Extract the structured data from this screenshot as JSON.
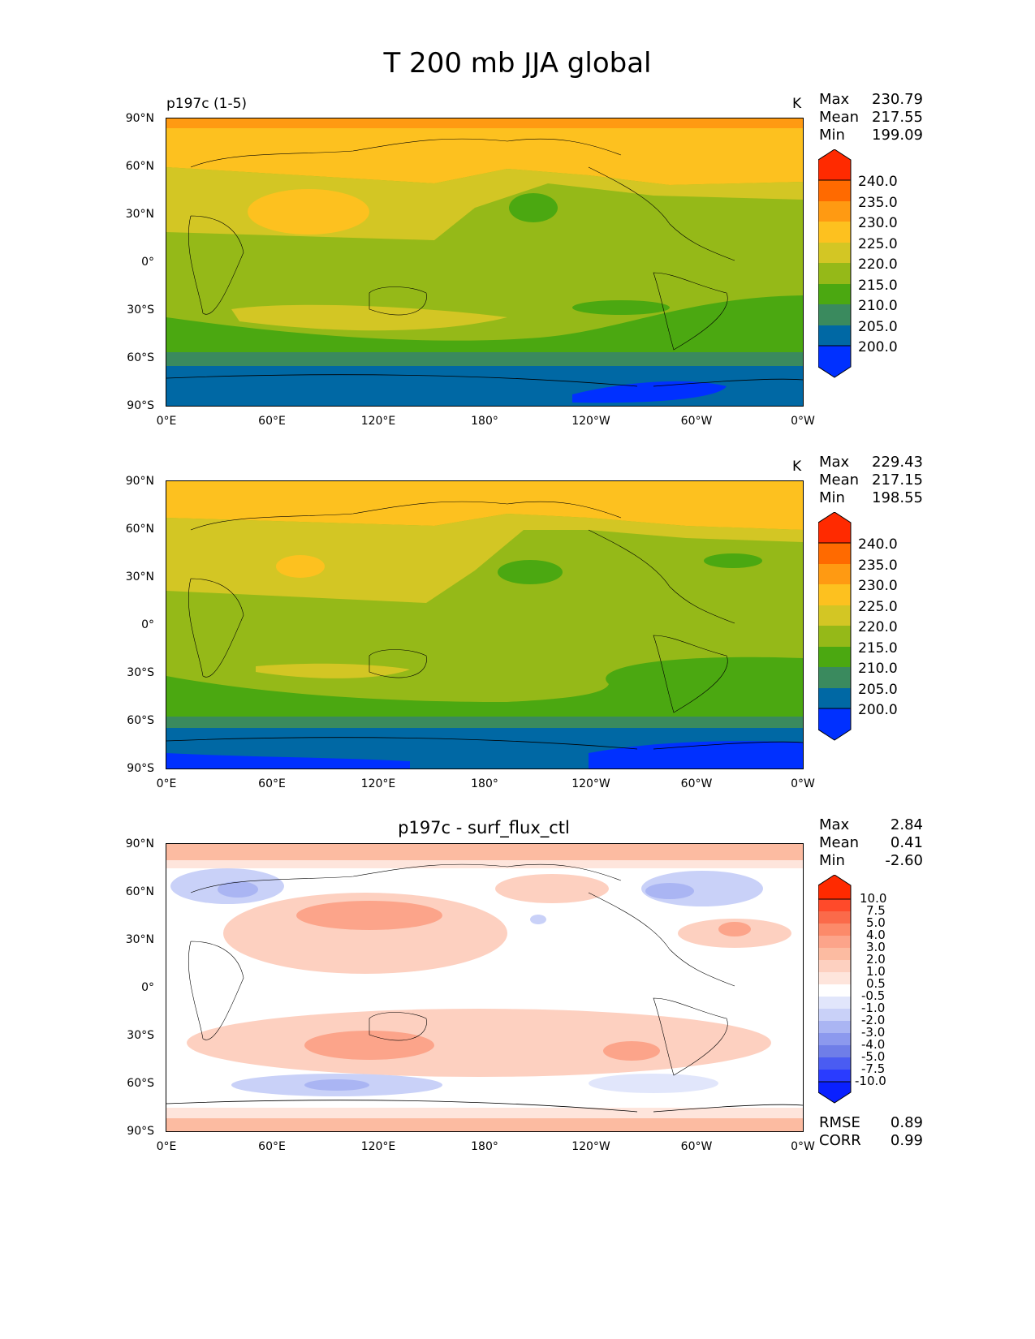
{
  "title": "T 200 mb JJA global",
  "axes": {
    "lon_ticks": [
      "0°E",
      "60°E",
      "120°E",
      "180°",
      "120°W",
      "60°W",
      "0°W"
    ],
    "lat_ticks": [
      "90°N",
      "60°N",
      "30°N",
      "0°",
      "30°S",
      "60°S",
      "90°S"
    ]
  },
  "panels": [
    {
      "left_label": "p197c (1-5)",
      "units": "K",
      "stats": [
        {
          "label": "Max",
          "value": "230.79"
        },
        {
          "label": "Mean",
          "value": "217.55"
        },
        {
          "label": "Min",
          "value": "199.09"
        }
      ]
    },
    {
      "left_label": "",
      "units": "K",
      "stats": [
        {
          "label": "Max",
          "value": "229.43"
        },
        {
          "label": "Mean",
          "value": "217.15"
        },
        {
          "label": "Min",
          "value": "198.55"
        }
      ]
    },
    {
      "center_title": "p197c - surf_flux_ctl",
      "stats": [
        {
          "label": "Max",
          "value": "2.84"
        },
        {
          "label": "Mean",
          "value": "0.41"
        },
        {
          "label": "Min",
          "value": "-2.60"
        }
      ],
      "metrics": [
        {
          "label": "RMSE",
          "value": "0.89"
        },
        {
          "label": "CORR",
          "value": "0.99"
        }
      ]
    }
  ],
  "colorbar_abs": {
    "levels": [
      "240.0",
      "235.0",
      "230.0",
      "225.0",
      "220.0",
      "215.0",
      "210.0",
      "205.0",
      "200.0"
    ],
    "colors": [
      "#ff2a00",
      "#ff6a00",
      "#ff9a12",
      "#fdc11f",
      "#d3c624",
      "#95b918",
      "#4ba811",
      "#3a8a5e",
      "#0068a4",
      "#0030ff"
    ]
  },
  "colorbar_diff": {
    "levels": [
      "10.0",
      "7.5",
      "5.0",
      "4.0",
      "3.0",
      "2.0",
      "1.0",
      "0.5",
      "-0.5",
      "-1.0",
      "-2.0",
      "-3.0",
      "-4.0",
      "-5.0",
      "-7.5",
      "-10.0"
    ],
    "colors": [
      "#ff2a00",
      "#ff4a2a",
      "#fb6a4a",
      "#fc8a6a",
      "#fca48a",
      "#fcbba1",
      "#fdd0c0",
      "#fee5dc",
      "#ffffff",
      "#e1e6fb",
      "#c9d1f8",
      "#aab5f3",
      "#8c99ee",
      "#6f7ee8",
      "#4a5cf2",
      "#2a3cff",
      "#0a20ff"
    ]
  }
}
